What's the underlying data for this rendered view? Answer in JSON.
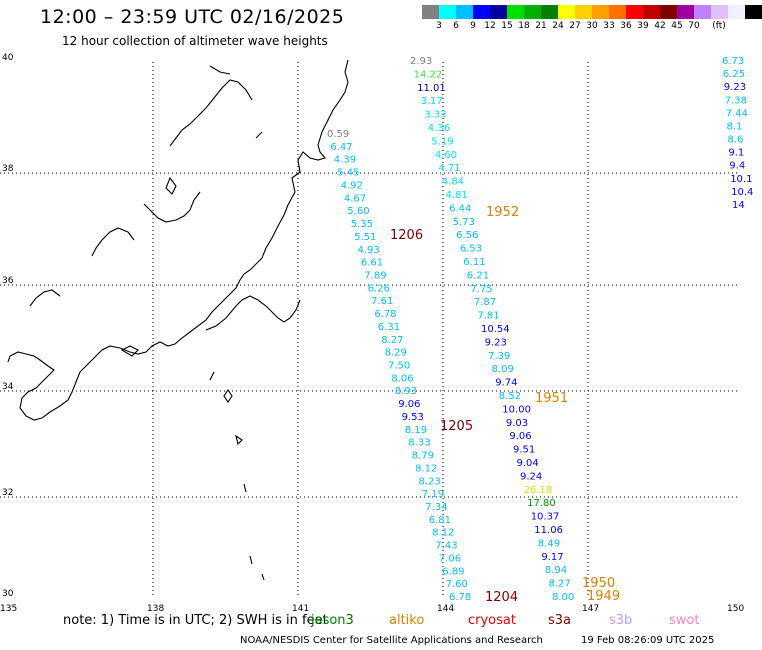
{
  "title": "12:00 – 23:59 UTC 02/16/2025",
  "subtitle": "12 hour collection of altimeter wave heights",
  "scale": {
    "colors": [
      "#808080",
      "#00ffff",
      "#00bfff",
      "#0000ff",
      "#0000a0",
      "#00e000",
      "#00b000",
      "#008000",
      "#ffff00",
      "#ffd000",
      "#ffa000",
      "#ff7000",
      "#ff0000",
      "#c00000",
      "#800000",
      "#a000a0",
      "#c080ff",
      "#e0c0ff",
      "#f0f0ff",
      "#000000"
    ],
    "labels": [
      "3",
      "6",
      "9",
      "12",
      "15",
      "18",
      "21",
      "24",
      "27",
      "30",
      "33",
      "36",
      "39",
      "42",
      "45",
      "70",
      "(ft)"
    ]
  },
  "axes": {
    "lon_labels": [
      "135",
      "138",
      "141",
      "144",
      "147",
      "150"
    ],
    "lat_labels": [
      "40",
      "38",
      "36",
      "34",
      "32",
      "30"
    ]
  },
  "times": [
    {
      "text": "1952",
      "color": "#e08000"
    },
    {
      "text": "1206",
      "color": "#800000"
    },
    {
      "text": "1951",
      "color": "#e08000"
    },
    {
      "text": "1205",
      "color": "#800000"
    },
    {
      "text": "1950",
      "color": "#e08000"
    },
    {
      "text": "1949",
      "color": "#e08000"
    },
    {
      "text": "1204",
      "color": "#800000"
    }
  ],
  "track_a": [
    {
      "v": "0.59",
      "c": "#808080"
    },
    {
      "v": "6.47",
      "c": "#00bfff"
    },
    {
      "v": "4.39",
      "c": "#00bfff"
    },
    {
      "v": "5.45",
      "c": "#00bfff"
    },
    {
      "v": "4.92",
      "c": "#00bfff"
    },
    {
      "v": "4.67",
      "c": "#00bfff"
    },
    {
      "v": "5.60",
      "c": "#00bfff"
    },
    {
      "v": "5.35",
      "c": "#00bfff"
    },
    {
      "v": "5.51",
      "c": "#00bfff"
    },
    {
      "v": "4.93",
      "c": "#00bfff"
    },
    {
      "v": "6.61",
      "c": "#00bfff"
    },
    {
      "v": "7.89",
      "c": "#00bfff"
    },
    {
      "v": "6.26",
      "c": "#00bfff"
    },
    {
      "v": "7.61",
      "c": "#00bfff"
    },
    {
      "v": "6.78",
      "c": "#00bfff"
    },
    {
      "v": "6.31",
      "c": "#00bfff"
    },
    {
      "v": "8.27",
      "c": "#00bfff"
    },
    {
      "v": "8.29",
      "c": "#00bfff"
    },
    {
      "v": "7.50",
      "c": "#00bfff"
    },
    {
      "v": "8.06",
      "c": "#00bfff"
    },
    {
      "v": "8.93",
      "c": "#00bfff"
    },
    {
      "v": "9.06",
      "c": "#0000ff"
    },
    {
      "v": "9.53",
      "c": "#0000ff"
    },
    {
      "v": "8.19",
      "c": "#00bfff"
    },
    {
      "v": "8.33",
      "c": "#00bfff"
    },
    {
      "v": "8.79",
      "c": "#00bfff"
    },
    {
      "v": "8.12",
      "c": "#00bfff"
    },
    {
      "v": "8.23",
      "c": "#00bfff"
    },
    {
      "v": "7.19",
      "c": "#00bfff"
    },
    {
      "v": "7.34",
      "c": "#00bfff"
    },
    {
      "v": "6.81",
      "c": "#00bfff"
    },
    {
      "v": "8.12",
      "c": "#00bfff"
    },
    {
      "v": "7.43",
      "c": "#00bfff"
    },
    {
      "v": "7.06",
      "c": "#00bfff"
    },
    {
      "v": "6.89",
      "c": "#00bfff"
    },
    {
      "v": "7.60",
      "c": "#00bfff"
    },
    {
      "v": "6.78",
      "c": "#00bfff"
    }
  ],
  "track_b": [
    {
      "v": "2.93",
      "c": "#808080"
    },
    {
      "v": "14.22",
      "c": "#40e040"
    },
    {
      "v": "11.01",
      "c": "#0000c0"
    },
    {
      "v": "3.17",
      "c": "#00e0ff"
    },
    {
      "v": "3.33",
      "c": "#00e0ff"
    },
    {
      "v": "4.36",
      "c": "#00e0ff"
    },
    {
      "v": "5.19",
      "c": "#00e0ff"
    },
    {
      "v": "4.60",
      "c": "#00e0ff"
    },
    {
      "v": "4.71",
      "c": "#00e0ff"
    },
    {
      "v": "4.84",
      "c": "#00e0ff"
    },
    {
      "v": "4.81",
      "c": "#00e0ff"
    },
    {
      "v": "6.44",
      "c": "#00bfff"
    },
    {
      "v": "5.73",
      "c": "#00bfff"
    },
    {
      "v": "6.56",
      "c": "#00bfff"
    },
    {
      "v": "6.53",
      "c": "#00bfff"
    },
    {
      "v": "6.11",
      "c": "#00bfff"
    },
    {
      "v": "6.21",
      "c": "#00bfff"
    },
    {
      "v": "7.75",
      "c": "#00bfff"
    },
    {
      "v": "7.87",
      "c": "#00bfff"
    },
    {
      "v": "7.81",
      "c": "#00bfff"
    },
    {
      "v": "10.54",
      "c": "#0000ff"
    },
    {
      "v": "9.23",
      "c": "#0000ff"
    },
    {
      "v": "7.39",
      "c": "#00bfff"
    },
    {
      "v": "8.09",
      "c": "#00bfff"
    },
    {
      "v": "9.74",
      "c": "#0000ff"
    },
    {
      "v": "8.52",
      "c": "#00bfff"
    },
    {
      "v": "10.00",
      "c": "#0000ff"
    },
    {
      "v": "9.03",
      "c": "#0000ff"
    },
    {
      "v": "9.06",
      "c": "#0000ff"
    },
    {
      "v": "9.51",
      "c": "#0000ff"
    },
    {
      "v": "9.04",
      "c": "#0000ff"
    },
    {
      "v": "9.24",
      "c": "#0000ff"
    },
    {
      "v": "26.18",
      "c": "#e0e000"
    },
    {
      "v": "17.80",
      "c": "#00a000"
    },
    {
      "v": "10.37",
      "c": "#0000ff"
    },
    {
      "v": "11.06",
      "c": "#0000ff"
    },
    {
      "v": "8.49",
      "c": "#00bfff"
    },
    {
      "v": "9.17",
      "c": "#0000ff"
    },
    {
      "v": "8.94",
      "c": "#00bfff"
    },
    {
      "v": "8.27",
      "c": "#00bfff"
    },
    {
      "v": "8.00",
      "c": "#00bfff"
    }
  ],
  "track_c": [
    {
      "v": "6.73",
      "c": "#00bfff"
    },
    {
      "v": "6.25",
      "c": "#00bfff"
    },
    {
      "v": "9.23",
      "c": "#0000ff"
    },
    {
      "v": "7.38",
      "c": "#00bfff"
    },
    {
      "v": "7.44",
      "c": "#00bfff"
    },
    {
      "v": "8.1",
      "c": "#00bfff"
    },
    {
      "v": "8.6",
      "c": "#00bfff"
    },
    {
      "v": "9.1",
      "c": "#0000ff"
    },
    {
      "v": "9.4",
      "c": "#0000ff"
    },
    {
      "v": "10.1",
      "c": "#0000ff"
    },
    {
      "v": "10.4",
      "c": "#0000ff"
    },
    {
      "v": "14",
      "c": "#0000ff"
    }
  ],
  "note": "note: 1) Time is in UTC; 2) SWH is in feet",
  "satellites": [
    {
      "name": "jason3",
      "color": "#008000"
    },
    {
      "name": "altiko",
      "color": "#e08000"
    },
    {
      "name": "cryosat",
      "color": "#e00000"
    },
    {
      "name": "s3a",
      "color": "#800000"
    },
    {
      "name": "s3b",
      "color": "#c0a0ff"
    },
    {
      "name": "swot",
      "color": "#ff80c0"
    }
  ],
  "footer": "NOAA/NESDIS Center for Satellite Applications and Research",
  "footer_time": "19 Feb 08:26:09 UTC 2025"
}
